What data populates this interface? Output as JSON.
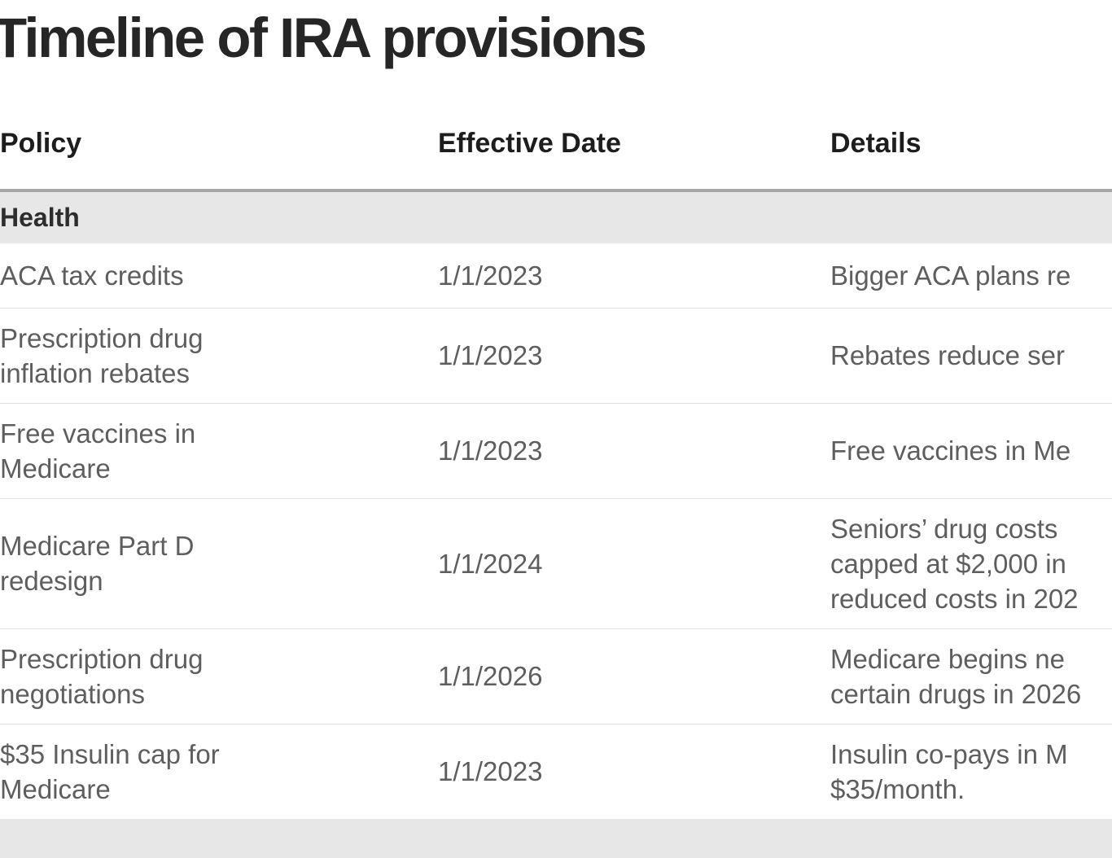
{
  "title": "Timeline of IRA provisions",
  "columns": {
    "policy": "Policy",
    "date": "Effective Date",
    "details": "Details"
  },
  "sections": [
    {
      "label": "Health",
      "rows": [
        {
          "policy_lines": [
            "ACA tax credits"
          ],
          "date": "1/1/2023",
          "details_lines": [
            "Bigger ACA plans re"
          ]
        },
        {
          "policy_lines": [
            "Prescription drug",
            "inflation rebates"
          ],
          "date": "1/1/2023",
          "details_lines": [
            "Rebates reduce ser"
          ]
        },
        {
          "policy_lines": [
            "Free vaccines in",
            "Medicare"
          ],
          "date": "1/1/2023",
          "details_lines": [
            "Free vaccines in Me"
          ]
        },
        {
          "policy_lines": [
            "Medicare Part D",
            "redesign"
          ],
          "date": "1/1/2024",
          "details_lines": [
            "Seniors’ drug costs",
            "capped at $2,000 in",
            "reduced costs in 202"
          ]
        },
        {
          "policy_lines": [
            "Prescription drug",
            "negotiations"
          ],
          "date": "1/1/2026",
          "details_lines": [
            "Medicare begins ne",
            "certain drugs in 2026"
          ]
        },
        {
          "policy_lines": [
            "$35 Insulin cap for",
            "Medicare"
          ],
          "date": "1/1/2023",
          "details_lines": [
            "Insulin co-pays in M",
            "$35/month."
          ]
        }
      ]
    },
    {
      "label": "",
      "rows": []
    }
  ],
  "colors": {
    "title_text": "#262626",
    "heading_text": "#1d1d1d",
    "body_text": "#5e5e5e",
    "section_bg": "#e7e7e7",
    "section_border": "#a6a6a6",
    "row_divider": "#dfdfdf"
  },
  "chart_data": {
    "type": "table",
    "title": "Timeline of IRA provisions",
    "columns": [
      "Policy",
      "Effective Date",
      "Details"
    ],
    "section_headers": [
      "Health"
    ],
    "rows": [
      [
        "ACA tax credits",
        "1/1/2023",
        "Bigger ACA plans re"
      ],
      [
        "Prescription drug inflation rebates",
        "1/1/2023",
        "Rebates reduce ser"
      ],
      [
        "Free vaccines in Medicare",
        "1/1/2023",
        "Free vaccines in Me"
      ],
      [
        "Medicare Part D redesign",
        "1/1/2024",
        "Seniors’ drug costs capped at $2,000 in reduced costs in 202"
      ],
      [
        "Prescription drug negotiations",
        "1/1/2026",
        "Medicare begins ne certain drugs in 2026"
      ],
      [
        "$35 Insulin cap for Medicare",
        "1/1/2023",
        "Insulin co-pays in M $35/month."
      ]
    ],
    "layout_hints": {
      "text_clipped_right_edge": true,
      "title_clipped_left_edge": true,
      "partial_section_bar_at_bottom": true
    }
  }
}
